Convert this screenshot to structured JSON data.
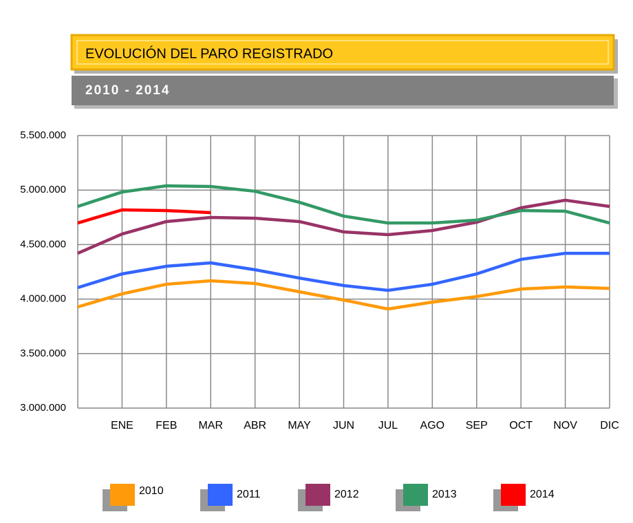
{
  "chart_data": {
    "type": "line",
    "title": "EVOLUCIÓN DEL PARO REGISTRADO",
    "subtitle": "2010 - 2014",
    "categories": [
      null,
      "ENE",
      "FEB",
      "MAR",
      "ABR",
      "MAY",
      "JUN",
      "JUL",
      "AGO",
      "SEP",
      "OCT",
      "NOV",
      "DIC"
    ],
    "series": [
      {
        "name": "2010",
        "color": "#ff9a0a",
        "values": [
          3928000,
          4048000,
          4136000,
          4168000,
          4143000,
          4067000,
          3991000,
          3909000,
          3972000,
          4023000,
          4092000,
          4111000,
          4098000
        ]
      },
      {
        "name": "2011",
        "color": "#3366ff",
        "values": [
          4105000,
          4231000,
          4301000,
          4332000,
          4269000,
          4193000,
          4124000,
          4080000,
          4136000,
          4231000,
          4364000,
          4420000,
          4420000
        ]
      },
      {
        "name": "2012",
        "color": "#993366",
        "values": [
          4420000,
          4597000,
          4711000,
          4749000,
          4742000,
          4711000,
          4616000,
          4591000,
          4629000,
          4705000,
          4837000,
          4907000,
          4850000
        ]
      },
      {
        "name": "2013",
        "color": "#339966",
        "values": [
          4850000,
          4982000,
          5039000,
          5033000,
          4989000,
          4888000,
          4761000,
          4698000,
          4698000,
          4724000,
          4812000,
          4806000,
          4698000
        ]
      },
      {
        "name": "2014",
        "color": "#ff0000",
        "values": [
          4698000,
          4818000,
          4812000,
          4793000,
          null,
          null,
          null,
          null,
          null,
          null,
          null,
          null,
          null
        ]
      }
    ],
    "ylim": [
      3000000,
      5500000
    ],
    "yticks": [
      {
        "value": 3000000,
        "label": "3.000.000"
      },
      {
        "value": 3500000,
        "label": "3.500.000"
      },
      {
        "value": 4000000,
        "label": "4.000.000"
      },
      {
        "value": 4500000,
        "label": "4.500.000"
      },
      {
        "value": 5000000,
        "label": "5.000.000"
      },
      {
        "value": 5500000,
        "label": "5.500.000"
      }
    ],
    "grid": true
  }
}
